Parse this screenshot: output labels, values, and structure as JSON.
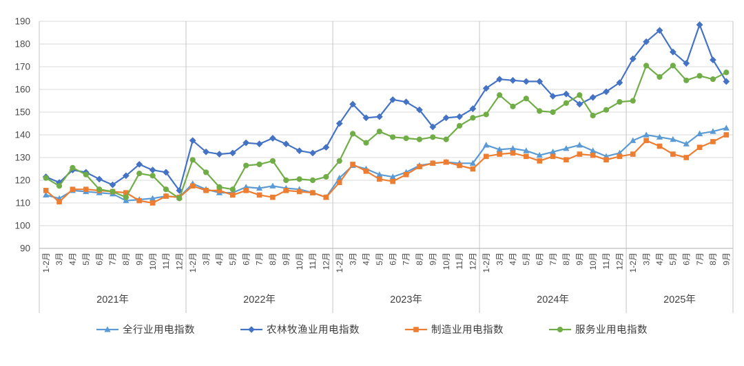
{
  "chart_data": {
    "type": "line",
    "title": "",
    "grid": true,
    "legend_position": "bottom",
    "y_axis": {
      "min": 90,
      "max": 190,
      "step": 10,
      "ticks": [
        90,
        100,
        110,
        120,
        130,
        140,
        150,
        160,
        170,
        180,
        190
      ]
    },
    "years": [
      {
        "label": "2021年",
        "count": 11
      },
      {
        "label": "2022年",
        "count": 11
      },
      {
        "label": "2023年",
        "count": 11
      },
      {
        "label": "2024年",
        "count": 11
      },
      {
        "label": "2025年",
        "count": 8
      }
    ],
    "x_labels": [
      "1-2月",
      "3月",
      "4月",
      "5月",
      "6月",
      "7月",
      "8月",
      "9月",
      "10月",
      "11月",
      "12月",
      "1-2月",
      "3月",
      "4月",
      "5月",
      "6月",
      "7月",
      "8月",
      "9月",
      "10月",
      "11月",
      "12月",
      "1-2月",
      "3月",
      "4月",
      "5月",
      "6月",
      "7月",
      "8月",
      "9月",
      "10月",
      "11月",
      "12月",
      "1-2月",
      "3月",
      "4月",
      "5月",
      "6月",
      "7月",
      "8月",
      "9月",
      "10月",
      "11月",
      "12月",
      "1-2月",
      "3月",
      "4月",
      "5月",
      "6月",
      "7月",
      "8月",
      "9月"
    ],
    "series": [
      {
        "id": "all-industry",
        "name": "全行业用电指数",
        "color": "#5B9BD5",
        "marker": "triangle",
        "values": [
          113.5,
          112,
          115.5,
          115,
          114.5,
          114,
          111,
          111.5,
          112,
          113,
          112.5,
          118.5,
          116,
          114.5,
          114.5,
          117,
          116.5,
          117.5,
          116.5,
          116,
          114.5,
          112.5,
          121,
          126.5,
          125,
          122.5,
          121.5,
          123.5,
          126.5,
          127.5,
          128,
          127.5,
          127.5,
          135.5,
          133.5,
          134,
          133,
          131,
          132.5,
          134,
          135.5,
          133,
          130.5,
          132,
          137.5,
          140,
          139,
          138,
          136,
          140.5,
          141.5,
          143
        ]
      },
      {
        "id": "agri-forestry-fishery",
        "name": "农林牧渔业用电指数",
        "color": "#4472C4",
        "marker": "diamond",
        "values": [
          121.5,
          119,
          124.5,
          123.5,
          120.5,
          118,
          122,
          127,
          124.5,
          123.5,
          115.5,
          137.5,
          132.5,
          131.5,
          132,
          136.5,
          136,
          138.5,
          136,
          133,
          132,
          134.5,
          145,
          153.5,
          147.5,
          148,
          155.5,
          154.5,
          151,
          143.5,
          147.5,
          148,
          151.5,
          160.5,
          164.5,
          164,
          163.5,
          163.5,
          157,
          158,
          153.5,
          156.5,
          159,
          163,
          173.5,
          181,
          186,
          176.5,
          171.5,
          188.5,
          173,
          163.5
        ]
      },
      {
        "id": "manufacturing",
        "name": "制造业用电指数",
        "color": "#ED7D31",
        "marker": "square",
        "values": [
          115.5,
          110.5,
          116,
          116,
          115.5,
          115,
          114.5,
          111,
          110,
          113,
          112.5,
          117.5,
          115.5,
          115.5,
          113.5,
          115.5,
          113.5,
          112.5,
          115.5,
          115,
          114.5,
          112.5,
          119,
          127,
          124,
          120.5,
          119.5,
          122.5,
          126,
          127.5,
          128,
          126.5,
          125,
          130.5,
          131.5,
          132,
          130.5,
          128.5,
          130.5,
          129,
          131.5,
          131,
          129,
          130.5,
          131.5,
          137.5,
          135,
          131.5,
          130,
          134.5,
          137,
          140
        ]
      },
      {
        "id": "services",
        "name": "服务业用电指数",
        "color": "#70AD47",
        "marker": "circle",
        "values": [
          121,
          117.5,
          125.5,
          122.5,
          116,
          115,
          112.5,
          123,
          122,
          116,
          112,
          129,
          123.5,
          117,
          116,
          126.5,
          127,
          128.5,
          120,
          120.5,
          120,
          121.5,
          128.5,
          140.5,
          136.5,
          141.5,
          139,
          138.5,
          138,
          139,
          138,
          144,
          147.5,
          149,
          157.5,
          152.5,
          156,
          150.5,
          150,
          154,
          157.5,
          148.5,
          151,
          154.5,
          155,
          170.5,
          165.5,
          170.5,
          164,
          166,
          164.5,
          167.5
        ]
      }
    ]
  },
  "style": {
    "gridline_color": "#D9D9D9",
    "axis_line_color": "#BFBFBF",
    "divider_color": "#C4C4C4",
    "tick_label_color": "#4a4a4a",
    "year_label_color": "#404040",
    "background": "#ffffff"
  }
}
